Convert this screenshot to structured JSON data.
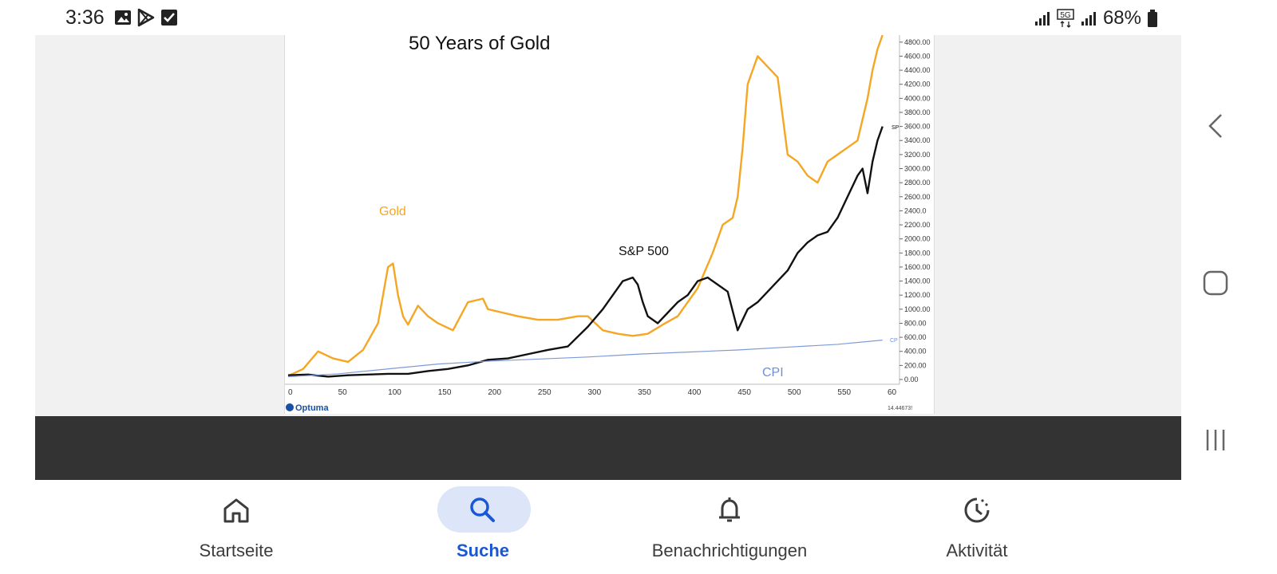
{
  "status": {
    "time": "3:36",
    "battery": "68%",
    "network": "5G",
    "icons_left": [
      "image-icon",
      "play-store-icon",
      "checkbox-icon"
    ],
    "icons_right": [
      "signal-icon",
      "5g-icon",
      "signal-icon",
      "battery-icon"
    ]
  },
  "chart_data": {
    "type": "line",
    "title": "50 Years of Gold",
    "xlabel": "",
    "ylabel": "",
    "xlim": [
      0,
      600
    ],
    "ylim": [
      0,
      4900
    ],
    "x_ticks": [
      "0",
      "50",
      "100",
      "150",
      "200",
      "250",
      "300",
      "350",
      "400",
      "450",
      "500",
      "550",
      "60"
    ],
    "y_ticks": [
      "4800.00",
      "4600.00",
      "4400.00",
      "4200.00",
      "4000.00",
      "3800.00",
      "3600.00",
      "3400.00",
      "3200.00",
      "3000.00",
      "2800.00",
      "2600.00",
      "2400.0",
      "2200.00",
      "2000.00",
      "1800.00",
      "1600.00",
      "1400.00",
      "1200.00",
      "1000.00",
      "800.00",
      "600.00",
      "400.00",
      "200.00",
      "0.00"
    ],
    "series": [
      {
        "name": "Gold",
        "color": "#f5a623",
        "x": [
          0,
          15,
          30,
          45,
          60,
          75,
          90,
          100,
          105,
          110,
          115,
          120,
          130,
          140,
          150,
          165,
          180,
          195,
          200,
          215,
          230,
          250,
          270,
          290,
          300,
          315,
          330,
          345,
          360,
          375,
          390,
          400,
          410,
          425,
          435,
          445,
          450,
          455,
          460,
          470,
          480,
          490,
          500,
          510,
          520,
          530,
          540,
          550,
          560,
          570,
          580,
          585,
          590,
          595
        ],
        "values": [
          50,
          150,
          400,
          300,
          250,
          420,
          800,
          1600,
          1650,
          1200,
          900,
          780,
          1050,
          900,
          800,
          700,
          1100,
          1150,
          1000,
          950,
          900,
          850,
          850,
          900,
          900,
          700,
          650,
          620,
          650,
          780,
          900,
          1100,
          1300,
          1800,
          2200,
          2300,
          2600,
          3300,
          4200,
          4600,
          4450,
          4300,
          3200,
          3100,
          2900,
          2800,
          3100,
          3200,
          3300,
          3400,
          4000,
          4400,
          4700,
          4900
        ]
      },
      {
        "name": "S&P 500",
        "color": "#111111",
        "x": [
          0,
          20,
          40,
          60,
          80,
          100,
          120,
          140,
          160,
          180,
          200,
          220,
          240,
          260,
          280,
          300,
          315,
          325,
          335,
          345,
          350,
          355,
          360,
          370,
          380,
          390,
          400,
          410,
          420,
          430,
          440,
          450,
          455,
          460,
          470,
          480,
          490,
          500,
          510,
          520,
          530,
          540,
          550,
          560,
          570,
          575,
          580,
          585,
          590,
          595
        ],
        "values": [
          60,
          70,
          40,
          60,
          70,
          80,
          80,
          120,
          150,
          200,
          280,
          300,
          360,
          420,
          470,
          750,
          1000,
          1200,
          1400,
          1450,
          1350,
          1100,
          900,
          800,
          950,
          1100,
          1200,
          1400,
          1450,
          1350,
          1250,
          700,
          850,
          1000,
          1100,
          1250,
          1400,
          1550,
          1800,
          1950,
          2050,
          2100,
          2300,
          2600,
          2900,
          3000,
          2650,
          3100,
          3400,
          3600
        ]
      },
      {
        "name": "CPI",
        "color": "#7e9ad6",
        "x": [
          0,
          50,
          100,
          150,
          200,
          250,
          300,
          350,
          400,
          450,
          500,
          550,
          595
        ],
        "values": [
          40,
          80,
          150,
          220,
          260,
          290,
          320,
          360,
          390,
          420,
          460,
          500,
          560
        ]
      }
    ],
    "labels": {
      "gold": "Gold",
      "sp500": "S&P 500",
      "cpi": "CPI"
    },
    "grid": false,
    "legend": "none",
    "watermark": "Optuma",
    "footer_value": "14.44673!",
    "sp_tag": "SP",
    "cpi_tag": "CP"
  },
  "bottom_nav": {
    "items": [
      {
        "label": "Startseite",
        "icon": "home-icon",
        "active": false
      },
      {
        "label": "Suche",
        "icon": "search-icon",
        "active": true
      },
      {
        "label": "Benachrichtigungen",
        "icon": "bell-icon",
        "active": false
      },
      {
        "label": "Aktivität",
        "icon": "history-icon",
        "active": false
      }
    ]
  },
  "system_nav": {
    "back": "back-icon",
    "home": "home-square-icon",
    "recents": "recents-icon"
  }
}
